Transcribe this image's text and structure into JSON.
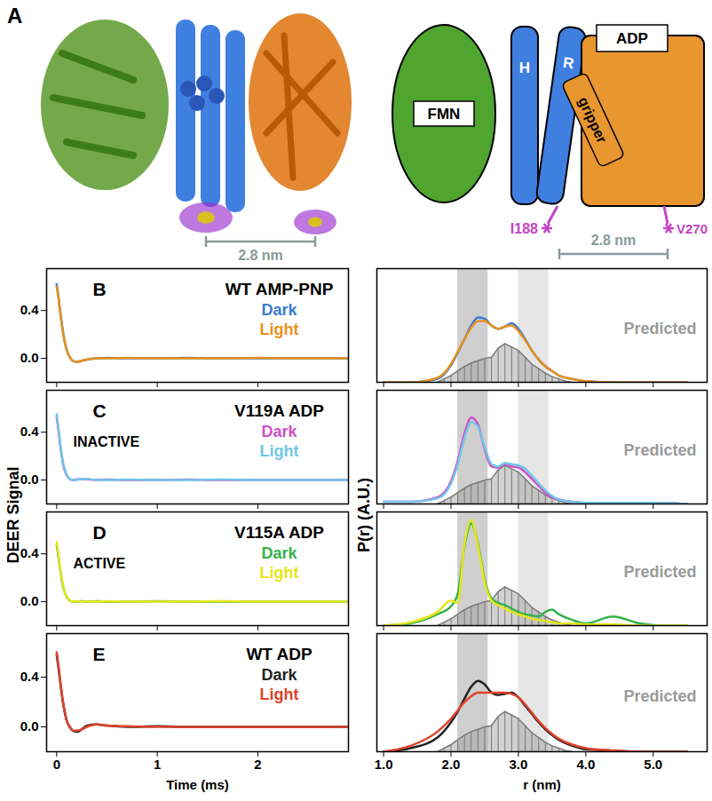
{
  "diagram": {
    "panel_label": "A",
    "boxes": {
      "fmn": "FMN",
      "h": "H",
      "r": "R",
      "adp": "ADP",
      "gripper": "gripper"
    },
    "spin_labels": [
      "I188",
      "V270"
    ],
    "scale_bars": [
      "2.8 nm",
      "2.8 nm"
    ]
  },
  "chart_data": [
    {
      "type": "line",
      "panel_label": "B",
      "title": "WT AMP-PNP",
      "legend": "top-right",
      "tick_labels": "y",
      "x": [
        0,
        0.02,
        0.04,
        0.06,
        0.08,
        0.1,
        0.13,
        0.16,
        0.2,
        0.25,
        0.3,
        0.4,
        0.5,
        0.7,
        1.0,
        1.3,
        1.6,
        2.0,
        2.4,
        2.9
      ],
      "series": [
        {
          "name": "Dark",
          "color": "#3a7bd5",
          "values": [
            0.62,
            0.5,
            0.36,
            0.24,
            0.14,
            0.07,
            0.01,
            -0.02,
            -0.03,
            -0.02,
            -0.01,
            0,
            0.005,
            0,
            0,
            0.005,
            0,
            0,
            0,
            0
          ]
        },
        {
          "name": "Light",
          "color": "#e8901c",
          "values": [
            0.6,
            0.49,
            0.35,
            0.23,
            0.14,
            0.07,
            0.01,
            -0.02,
            -0.03,
            -0.02,
            -0.01,
            0,
            0,
            0.005,
            0,
            0,
            0,
            0.005,
            0,
            0
          ]
        }
      ],
      "xlim": [
        -0.1,
        2.9
      ],
      "xticks": [
        0,
        1,
        2
      ],
      "ylim": [
        -0.2,
        0.75
      ],
      "yticks": [
        {
          "value": 0,
          "label": "0.0"
        },
        {
          "value": 0.4,
          "label": "0.4"
        }
      ]
    },
    {
      "type": "line",
      "tick_labels": false,
      "x": [
        1.0,
        1.4,
        1.8,
        2.0,
        2.1,
        2.2,
        2.3,
        2.4,
        2.5,
        2.6,
        2.7,
        2.8,
        2.9,
        3.0,
        3.1,
        3.2,
        3.3,
        3.4,
        3.5,
        3.6,
        3.8,
        4.0,
        4.4,
        4.8,
        5.2,
        5.5
      ],
      "series": [
        {
          "color": "#3a7bd5",
          "values": [
            0,
            0,
            0.03,
            0.15,
            0.26,
            0.38,
            0.5,
            0.57,
            0.56,
            0.5,
            0.47,
            0.49,
            0.52,
            0.47,
            0.38,
            0.28,
            0.2,
            0.14,
            0.1,
            0.06,
            0.03,
            0.01,
            0,
            0,
            0,
            0
          ]
        },
        {
          "color": "#e8901c",
          "values": [
            0,
            0,
            0.04,
            0.16,
            0.27,
            0.38,
            0.48,
            0.54,
            0.54,
            0.5,
            0.47,
            0.49,
            0.5,
            0.45,
            0.37,
            0.28,
            0.2,
            0.14,
            0.1,
            0.06,
            0.03,
            0.01,
            0,
            0,
            0,
            0
          ]
        }
      ],
      "predicted": {
        "name": "Predicted",
        "color": "#9a9a9a",
        "x": [
          1.8,
          1.9,
          2.0,
          2.1,
          2.2,
          2.3,
          2.4,
          2.5,
          2.6,
          2.7,
          2.8,
          2.9,
          3.0,
          3.1,
          3.2,
          3.3,
          3.4,
          3.5,
          3.6,
          3.7,
          3.8
        ],
        "values": [
          0,
          0.03,
          0.06,
          0.1,
          0.14,
          0.17,
          0.19,
          0.21,
          0.22,
          0.3,
          0.34,
          0.31,
          0.28,
          0.22,
          0.16,
          0.12,
          0.08,
          0.05,
          0.03,
          0.01,
          0
        ]
      },
      "shaded_ranges": [
        {
          "from": 2.1,
          "to": 2.55,
          "color": "#cfcfcf"
        },
        {
          "from": 3.0,
          "to": 3.45,
          "color": "#e6e6e6"
        }
      ],
      "xlim": [
        0.9,
        5.8
      ],
      "xticks": [
        {
          "value": 1,
          "label": "1.0"
        },
        {
          "value": 2,
          "label": "2.0"
        },
        {
          "value": 3,
          "label": "3.0"
        },
        {
          "value": 4,
          "label": "4.0"
        },
        {
          "value": 5,
          "label": "5.0"
        }
      ],
      "ylim": [
        0,
        1
      ]
    },
    {
      "type": "line",
      "panel_label": "C",
      "title": "V119A ADP",
      "annotation": "INACTIVE",
      "legend": "top-right",
      "tick_labels": "y",
      "x": [
        0,
        0.02,
        0.04,
        0.06,
        0.08,
        0.1,
        0.13,
        0.16,
        0.2,
        0.25,
        0.3,
        0.4,
        0.5,
        0.7,
        1.0,
        1.3,
        1.6,
        2.0,
        2.4,
        2.9
      ],
      "series": [
        {
          "name": "Dark",
          "color": "#d04fc8",
          "values": [
            0.53,
            0.4,
            0.26,
            0.15,
            0.08,
            0.04,
            0.01,
            0,
            0.005,
            0.01,
            0.005,
            0,
            0.005,
            0,
            0,
            0.005,
            0,
            0,
            0,
            0
          ]
        },
        {
          "name": "Light",
          "color": "#6fc6e8",
          "values": [
            0.55,
            0.42,
            0.28,
            0.16,
            0.09,
            0.04,
            0.01,
            0,
            0,
            0.01,
            0.01,
            0,
            0,
            0.005,
            0,
            0,
            0.005,
            0,
            0,
            0
          ]
        }
      ],
      "xlim": [
        -0.1,
        2.9
      ],
      "xticks": [
        0,
        1,
        2
      ],
      "ylim": [
        -0.2,
        0.75
      ],
      "yticks": [
        {
          "value": 0,
          "label": "0.0"
        },
        {
          "value": 0.4,
          "label": "0.4"
        }
      ]
    },
    {
      "type": "line",
      "tick_labels": false,
      "x": [
        1.0,
        1.4,
        1.8,
        2.0,
        2.1,
        2.2,
        2.3,
        2.4,
        2.5,
        2.6,
        2.7,
        2.8,
        2.9,
        3.0,
        3.1,
        3.2,
        3.3,
        3.4,
        3.5,
        3.6,
        3.8,
        4.0,
        4.4,
        4.8,
        5.2,
        5.5
      ],
      "series": [
        {
          "color": "#d04fc8",
          "values": [
            0.02,
            0.02,
            0.06,
            0.2,
            0.38,
            0.62,
            0.76,
            0.7,
            0.48,
            0.33,
            0.32,
            0.35,
            0.33,
            0.32,
            0.28,
            0.22,
            0.16,
            0.1,
            0.06,
            0.04,
            0.02,
            0.01,
            0.01,
            0.01,
            0.01,
            0
          ]
        },
        {
          "color": "#6fc6e8",
          "values": [
            0.02,
            0.02,
            0.05,
            0.18,
            0.35,
            0.58,
            0.72,
            0.68,
            0.5,
            0.35,
            0.33,
            0.36,
            0.35,
            0.34,
            0.31,
            0.25,
            0.18,
            0.12,
            0.07,
            0.04,
            0.02,
            0.01,
            0.01,
            0.01,
            0.01,
            0
          ]
        }
      ],
      "predicted": {
        "name": "Predicted",
        "color": "#9a9a9a",
        "x": [
          1.8,
          1.9,
          2.0,
          2.1,
          2.2,
          2.3,
          2.4,
          2.5,
          2.6,
          2.7,
          2.8,
          2.9,
          3.0,
          3.1,
          3.2,
          3.3,
          3.4,
          3.5,
          3.6,
          3.7,
          3.8
        ],
        "values": [
          0,
          0.03,
          0.06,
          0.1,
          0.14,
          0.17,
          0.19,
          0.21,
          0.22,
          0.3,
          0.34,
          0.31,
          0.28,
          0.22,
          0.16,
          0.12,
          0.08,
          0.05,
          0.03,
          0.01,
          0
        ]
      },
      "shaded_ranges": [
        {
          "from": 2.1,
          "to": 2.55,
          "color": "#cfcfcf"
        },
        {
          "from": 3.0,
          "to": 3.45,
          "color": "#e6e6e6"
        }
      ],
      "xlim": [
        0.9,
        5.8
      ],
      "xticks": [
        {
          "value": 1,
          "label": "1.0"
        },
        {
          "value": 2,
          "label": "2.0"
        },
        {
          "value": 3,
          "label": "3.0"
        },
        {
          "value": 4,
          "label": "4.0"
        },
        {
          "value": 5,
          "label": "5.0"
        }
      ],
      "ylim": [
        0,
        1
      ]
    },
    {
      "type": "line",
      "panel_label": "D",
      "title": "V115A ADP",
      "annotation": "ACTIVE",
      "legend": "top-right",
      "tick_labels": "y",
      "x": [
        0,
        0.02,
        0.04,
        0.06,
        0.08,
        0.1,
        0.13,
        0.16,
        0.2,
        0.25,
        0.3,
        0.4,
        0.5,
        0.7,
        1.0,
        1.3,
        1.6,
        2.0,
        2.4,
        2.9
      ],
      "series": [
        {
          "name": "Dark",
          "color": "#33b34a",
          "values": [
            0.48,
            0.36,
            0.24,
            0.14,
            0.08,
            0.04,
            0.01,
            0,
            0,
            0.005,
            0,
            0.005,
            0,
            0,
            0.005,
            0,
            0,
            0,
            0,
            0
          ]
        },
        {
          "name": "Light",
          "color": "#e6e619",
          "values": [
            0.5,
            0.38,
            0.25,
            0.15,
            0.08,
            0.04,
            0.01,
            0,
            0.005,
            0,
            0,
            0,
            0.005,
            0,
            0,
            0,
            0.005,
            0,
            0,
            0
          ]
        }
      ],
      "xlim": [
        -0.1,
        2.9
      ],
      "xticks": [
        0,
        1,
        2
      ],
      "ylim": [
        -0.2,
        0.75
      ],
      "yticks": [
        {
          "value": 0,
          "label": "0.0"
        },
        {
          "value": 0.4,
          "label": "0.4"
        }
      ]
    },
    {
      "type": "line",
      "tick_labels": false,
      "x": [
        1.0,
        1.4,
        1.8,
        2.0,
        2.1,
        2.2,
        2.3,
        2.4,
        2.5,
        2.6,
        2.7,
        2.8,
        2.9,
        3.0,
        3.1,
        3.2,
        3.3,
        3.4,
        3.5,
        3.6,
        3.8,
        4.0,
        4.4,
        4.8,
        5.2,
        5.5
      ],
      "series": [
        {
          "color": "#33b34a",
          "values": [
            0,
            0.02,
            0.1,
            0.17,
            0.28,
            0.7,
            0.9,
            0.72,
            0.4,
            0.24,
            0.2,
            0.18,
            0.15,
            0.12,
            0.1,
            0.09,
            0.08,
            0.12,
            0.14,
            0.1,
            0.05,
            0.02,
            0.08,
            0.02,
            0,
            0
          ]
        },
        {
          "color": "#e6e619",
          "values": [
            0,
            0.03,
            0.12,
            0.22,
            0.2,
            0.72,
            0.93,
            0.7,
            0.38,
            0.22,
            0.18,
            0.15,
            0.12,
            0.1,
            0.08,
            0.06,
            0.05,
            0.04,
            0.03,
            0.02,
            0.02,
            0.01,
            0.01,
            0,
            0,
            0
          ]
        }
      ],
      "predicted": {
        "name": "Predicted",
        "color": "#9a9a9a",
        "x": [
          1.8,
          1.9,
          2.0,
          2.1,
          2.2,
          2.3,
          2.4,
          2.5,
          2.6,
          2.7,
          2.8,
          2.9,
          3.0,
          3.1,
          3.2,
          3.3,
          3.4,
          3.5,
          3.6,
          3.7,
          3.8
        ],
        "values": [
          0,
          0.03,
          0.06,
          0.1,
          0.14,
          0.17,
          0.19,
          0.21,
          0.22,
          0.3,
          0.34,
          0.31,
          0.28,
          0.22,
          0.16,
          0.12,
          0.08,
          0.05,
          0.03,
          0.01,
          0
        ]
      },
      "shaded_ranges": [
        {
          "from": 2.1,
          "to": 2.55,
          "color": "#cfcfcf"
        },
        {
          "from": 3.0,
          "to": 3.45,
          "color": "#e6e6e6"
        }
      ],
      "xlim": [
        0.9,
        5.8
      ],
      "xticks": [
        {
          "value": 1,
          "label": "1.0"
        },
        {
          "value": 2,
          "label": "2.0"
        },
        {
          "value": 3,
          "label": "3.0"
        },
        {
          "value": 4,
          "label": "4.0"
        },
        {
          "value": 5,
          "label": "5.0"
        }
      ],
      "ylim": [
        0,
        1
      ]
    },
    {
      "type": "line",
      "panel_label": "E",
      "title": "WT ADP",
      "legend": "top-right",
      "xlabel": "Time (ms)",
      "ylabel": "DEER Signal",
      "x": [
        0,
        0.02,
        0.04,
        0.06,
        0.08,
        0.1,
        0.13,
        0.16,
        0.2,
        0.25,
        0.3,
        0.4,
        0.5,
        0.7,
        1.0,
        1.3,
        1.6,
        2.0,
        2.4,
        2.9
      ],
      "series": [
        {
          "name": "Dark",
          "color": "#222222",
          "values": [
            0.58,
            0.46,
            0.33,
            0.21,
            0.12,
            0.05,
            0,
            -0.03,
            -0.04,
            -0.02,
            0.01,
            0.02,
            0.01,
            0,
            0.005,
            0,
            0,
            0,
            0,
            0
          ]
        },
        {
          "name": "Light",
          "color": "#e0422a",
          "values": [
            0.6,
            0.48,
            0.34,
            0.22,
            0.12,
            0.05,
            0,
            -0.03,
            -0.03,
            -0.02,
            0,
            0.02,
            0.01,
            0.005,
            0,
            0,
            0,
            0,
            0,
            0
          ]
        }
      ],
      "xlim": [
        -0.1,
        2.9
      ],
      "xticks": [
        0,
        1,
        2
      ],
      "ylim": [
        -0.2,
        0.75
      ],
      "yticks": [
        {
          "value": 0,
          "label": "0.0"
        },
        {
          "value": 0.4,
          "label": "0.4"
        }
      ]
    },
    {
      "type": "line",
      "tick_labels": "x",
      "xlabel": "r (nm)",
      "ylabel": "P(r) (A.U.)",
      "x": [
        1.0,
        1.4,
        1.8,
        2.0,
        2.1,
        2.2,
        2.3,
        2.4,
        2.5,
        2.6,
        2.7,
        2.8,
        2.9,
        3.0,
        3.1,
        3.2,
        3.3,
        3.4,
        3.5,
        3.6,
        3.8,
        4.0,
        4.4,
        4.8,
        5.2,
        5.5
      ],
      "series": [
        {
          "color": "#222222",
          "values": [
            0,
            0.03,
            0.12,
            0.25,
            0.34,
            0.45,
            0.55,
            0.6,
            0.57,
            0.5,
            0.48,
            0.49,
            0.5,
            0.46,
            0.39,
            0.32,
            0.25,
            0.19,
            0.14,
            0.1,
            0.05,
            0.02,
            0.01,
            0,
            0,
            0
          ]
        },
        {
          "color": "#e0422a",
          "values": [
            0,
            0.05,
            0.17,
            0.28,
            0.35,
            0.42,
            0.47,
            0.5,
            0.5,
            0.5,
            0.5,
            0.5,
            0.49,
            0.46,
            0.4,
            0.33,
            0.26,
            0.2,
            0.15,
            0.11,
            0.06,
            0.03,
            0.01,
            0,
            0,
            0
          ]
        }
      ],
      "predicted": {
        "name": "Predicted",
        "color": "#9a9a9a",
        "x": [
          1.8,
          1.9,
          2.0,
          2.1,
          2.2,
          2.3,
          2.4,
          2.5,
          2.6,
          2.7,
          2.8,
          2.9,
          3.0,
          3.1,
          3.2,
          3.3,
          3.4,
          3.5,
          3.6,
          3.7,
          3.8
        ],
        "values": [
          0,
          0.03,
          0.06,
          0.1,
          0.14,
          0.17,
          0.19,
          0.21,
          0.22,
          0.3,
          0.34,
          0.31,
          0.28,
          0.22,
          0.16,
          0.12,
          0.08,
          0.05,
          0.03,
          0.01,
          0
        ]
      },
      "shaded_ranges": [
        {
          "from": 2.1,
          "to": 2.55,
          "color": "#cfcfcf"
        },
        {
          "from": 3.0,
          "to": 3.45,
          "color": "#e6e6e6"
        }
      ],
      "xlim": [
        0.9,
        5.8
      ],
      "xticks": [
        {
          "value": 1,
          "label": "1.0"
        },
        {
          "value": 2,
          "label": "2.0"
        },
        {
          "value": 3,
          "label": "3.0"
        },
        {
          "value": 4,
          "label": "4.0"
        },
        {
          "value": 5,
          "label": "5.0"
        }
      ],
      "ylim": [
        0,
        1
      ]
    }
  ]
}
